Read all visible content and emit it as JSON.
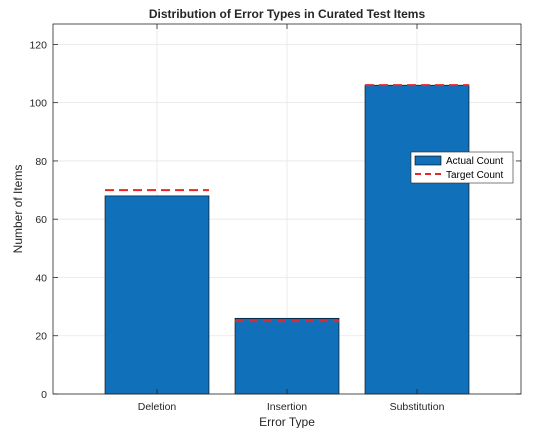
{
  "chart_data": {
    "type": "bar",
    "title": "Distribution of Error Types in Curated Test Items",
    "xlabel": "Error Type",
    "ylabel": "Number of Items",
    "categories": [
      "Deletion",
      "Insertion",
      "Substitution"
    ],
    "ylim": [
      0,
      127
    ],
    "yticks": [
      0,
      20,
      40,
      60,
      80,
      100,
      120
    ],
    "grid": true,
    "legend_position": "right",
    "series": [
      {
        "name": "Actual Count",
        "kind": "bar",
        "values": [
          68,
          26,
          106
        ],
        "color": "#1170BA"
      },
      {
        "name": "Target Count",
        "kind": "dashed-line",
        "values": [
          70,
          25,
          106
        ],
        "color": "#E8262A"
      }
    ]
  }
}
